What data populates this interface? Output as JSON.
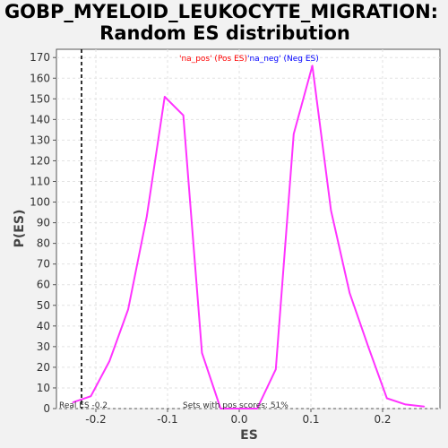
{
  "chart_data": {
    "type": "line",
    "title_line1": "GOBP_MYELOID_LEUKOCYTE_MIGRATION:",
    "title_line2": "Random ES distribution",
    "xlabel": "ES",
    "ylabel": "P(ES)",
    "xlim": [
      -0.255,
      0.28
    ],
    "ylim": [
      0,
      174
    ],
    "x_ticks": [
      -0.2,
      -0.1,
      0.0,
      0.1,
      0.2
    ],
    "x_tick_labels": [
      "-0.2",
      "-0.1",
      "0.0",
      "0.1",
      "0.2"
    ],
    "y_ticks": [
      0,
      10,
      20,
      30,
      40,
      50,
      60,
      70,
      80,
      90,
      100,
      110,
      120,
      130,
      140,
      150,
      160,
      170
    ],
    "grid": true,
    "series": [
      {
        "color": "#ff33ff",
        "x": [
          -0.232,
          -0.207,
          -0.181,
          -0.155,
          -0.129,
          -0.104,
          -0.078,
          -0.052,
          -0.026,
          0.0,
          0.025,
          0.051,
          0.076,
          0.102,
          0.128,
          0.154,
          0.18,
          0.206,
          0.232,
          0.258
        ],
        "y": [
          3,
          6,
          23,
          48,
          93,
          151,
          142,
          27,
          0,
          0,
          0,
          19,
          133,
          166,
          96,
          56,
          30,
          5,
          2,
          1
        ]
      }
    ],
    "real_es": -0.22,
    "legend": {
      "pos_label": "'na_pos' (Pos ES)",
      "neg_label": "'na_neg' (Neg ES)",
      "pos_color": "#ff0000",
      "neg_color": "#0000ff",
      "placement": "top-center"
    },
    "annotations": {
      "real_es_text": "Real ES -0.2",
      "pos_scores_text": "Sets with pos scores: 51%"
    }
  }
}
